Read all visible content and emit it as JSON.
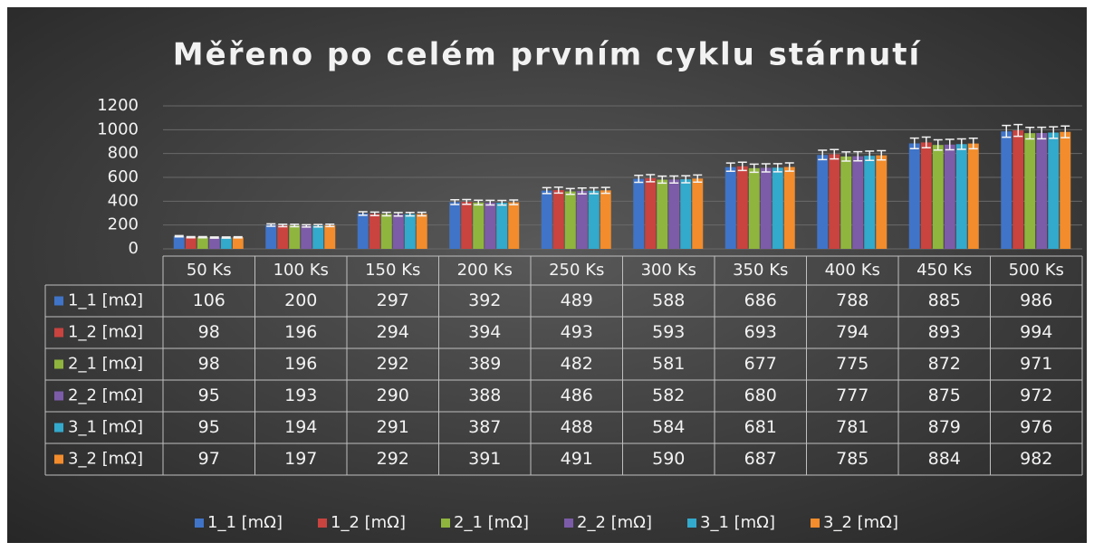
{
  "chart_data": {
    "type": "bar",
    "title": "Měřeno po celém prvním cyklu stárnutí",
    "categories": [
      "50 Ks",
      "100 Ks",
      "150 Ks",
      "200 Ks",
      "250 Ks",
      "300 Ks",
      "350 Ks",
      "400 Ks",
      "450 Ks",
      "500 Ks"
    ],
    "series": [
      {
        "name": "1_1 [mΩ]",
        "color": "#3f74c8",
        "values": [
          106,
          200,
          297,
          392,
          489,
          588,
          686,
          788,
          885,
          986
        ]
      },
      {
        "name": "1_2 [mΩ]",
        "color": "#c9433f",
        "values": [
          98,
          196,
          294,
          394,
          493,
          593,
          693,
          794,
          893,
          994
        ]
      },
      {
        "name": "2_1 [mΩ]",
        "color": "#8fb53e",
        "values": [
          98,
          196,
          292,
          389,
          482,
          581,
          677,
          775,
          872,
          971
        ]
      },
      {
        "name": "2_2 [mΩ]",
        "color": "#7c5ca8",
        "values": [
          95,
          193,
          290,
          388,
          486,
          582,
          680,
          777,
          875,
          972
        ]
      },
      {
        "name": "3_1 [mΩ]",
        "color": "#33a9cc",
        "values": [
          95,
          194,
          291,
          387,
          488,
          584,
          681,
          781,
          879,
          976
        ]
      },
      {
        "name": "3_2 [mΩ]",
        "color": "#f28c2c",
        "values": [
          97,
          197,
          292,
          391,
          491,
          590,
          687,
          785,
          884,
          982
        ]
      }
    ],
    "error_percent": 5,
    "ylim": [
      0,
      1200
    ],
    "yticks": [
      0,
      200,
      400,
      600,
      800,
      1000,
      1200
    ],
    "grid": true,
    "legend": "bottom"
  }
}
